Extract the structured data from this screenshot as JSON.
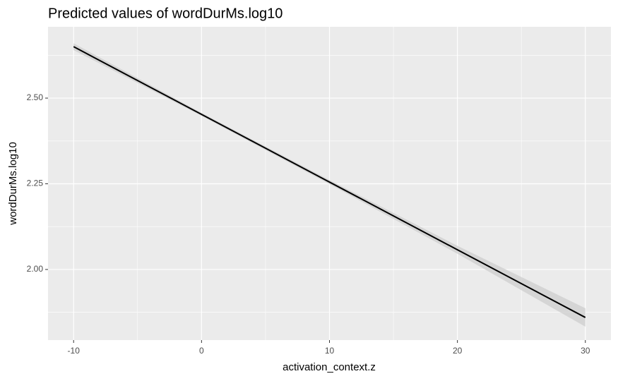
{
  "chart_data": {
    "type": "line",
    "title": "Predicted values of wordDurMs.log10",
    "xlabel": "activation_context.z",
    "ylabel": "wordDurMs.log10",
    "x": [
      -10,
      0,
      10,
      20,
      30
    ],
    "series": [
      {
        "color": "#000000",
        "values": [
          2.65,
          2.4525,
          2.255,
          2.0575,
          1.86
        ],
        "lower": [
          2.64,
          2.448,
          2.249,
          2.046,
          1.833
        ],
        "upper": [
          2.66,
          2.457,
          2.261,
          2.069,
          1.887
        ],
        "band_color": "#cfcfcf"
      }
    ],
    "xlim": [
      -12,
      32
    ],
    "ylim": [
      1.794,
      2.708
    ],
    "xticks": [
      -10,
      0,
      10,
      20,
      30
    ],
    "yticks": [
      {
        "value": 2.0,
        "label": "2.00"
      },
      2.25,
      {
        "value": 2.5,
        "label": "2.50"
      }
    ],
    "xminor": [
      -5,
      5,
      15,
      25
    ],
    "yminor": [
      1.875,
      2.125,
      2.375,
      2.625
    ],
    "grid": true,
    "panel_color": "#ebebeb"
  }
}
